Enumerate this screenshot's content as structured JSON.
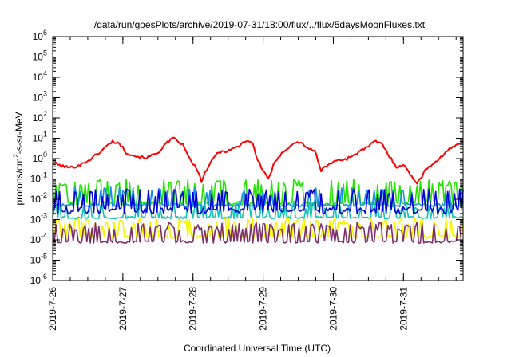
{
  "chart_data": {
    "type": "line",
    "title": "/data/run/goesPlots/archive/2019-07-31/18:00/flux/../flux/5daysMoonFluxes.txt",
    "xlabel": "Coordinated Universal Time (UTC)",
    "ylabel": "protons/cm²-s-sr-MeV",
    "ylabel_parts": {
      "pre": "protons/cm",
      "sup": "2",
      "post": "-s-sr-MeV"
    },
    "yscale": "log",
    "ylim_exp": [
      -6,
      6
    ],
    "y_tick_exponents": [
      -6,
      -5,
      -4,
      -3,
      -2,
      -1,
      0,
      1,
      2,
      3,
      4,
      5,
      6
    ],
    "y_tick_base": "10",
    "xlim_days": [
      0,
      5.85
    ],
    "x_ticks": [
      {
        "label": "2019-7-26",
        "day": 0
      },
      {
        "label": "2019-7-27",
        "day": 1
      },
      {
        "label": "2019-7-28",
        "day": 2
      },
      {
        "label": "2019-7-29",
        "day": 3
      },
      {
        "label": "2019-7-30",
        "day": 4
      },
      {
        "label": "2019-7-31",
        "day": 5
      }
    ],
    "grid": false,
    "legend": "none",
    "series": [
      {
        "color": "#f5f500",
        "style": "spiky",
        "baseline_exp": -3.85,
        "spike_exp": -3.1,
        "prob": 0.45,
        "noise": 0.08,
        "seed": 11,
        "keypoints": []
      },
      {
        "color": "#7b2d6e",
        "style": "spiky",
        "baseline_exp": -4.1,
        "spike_exp": -3.35,
        "prob": 0.45,
        "noise": 0.06,
        "seed": 23,
        "keypoints": []
      },
      {
        "color": "#12c4b4",
        "style": "spiky",
        "baseline_exp": -2.9,
        "spike_exp": -2.3,
        "prob": 0.3,
        "noise": 0.06,
        "seed": 37,
        "keypoints": []
      },
      {
        "color": "#22e400",
        "style": "spiky",
        "baseline_exp": -2.2,
        "spike_exp": -1.2,
        "prob": 0.3,
        "noise": 0.08,
        "seed": 53,
        "keypoints": []
      },
      {
        "color": "#1890e0",
        "style": "spiky",
        "baseline_exp": -2.3,
        "spike_exp": -1.6,
        "prob": 0.22,
        "noise": 0.08,
        "seed": 71,
        "keypoints": []
      },
      {
        "color": "#0000d8",
        "style": "spiky",
        "baseline_exp": -2.55,
        "spike_exp": -1.7,
        "prob": 0.28,
        "noise": 0.18,
        "seed": 89,
        "keypoints": []
      },
      {
        "color": "#ff0000",
        "style": "smooth",
        "baseline_exp": 0,
        "spike_exp": 0,
        "prob": 0,
        "noise": 0.07,
        "seed": 101,
        "keypoints": [
          [
            0.0,
            -0.2
          ],
          [
            0.12,
            -0.35
          ],
          [
            0.25,
            -0.45
          ],
          [
            0.4,
            -0.3
          ],
          [
            0.55,
            0.0
          ],
          [
            0.7,
            0.4
          ],
          [
            0.85,
            0.85
          ],
          [
            0.95,
            0.75
          ],
          [
            1.05,
            0.3
          ],
          [
            1.2,
            0.1
          ],
          [
            1.35,
            0.05
          ],
          [
            1.5,
            0.3
          ],
          [
            1.62,
            0.75
          ],
          [
            1.72,
            1.0
          ],
          [
            1.85,
            0.7
          ],
          [
            1.95,
            0.0
          ],
          [
            2.05,
            -0.5
          ],
          [
            2.12,
            -1.1
          ],
          [
            2.2,
            -0.5
          ],
          [
            2.35,
            0.3
          ],
          [
            2.5,
            0.4
          ],
          [
            2.65,
            0.6
          ],
          [
            2.75,
            0.9
          ],
          [
            2.85,
            0.8
          ],
          [
            2.9,
            0.1
          ],
          [
            3.0,
            -0.6
          ],
          [
            3.08,
            -1.0
          ],
          [
            3.15,
            -0.3
          ],
          [
            3.3,
            0.4
          ],
          [
            3.45,
            0.8
          ],
          [
            3.55,
            0.75
          ],
          [
            3.65,
            0.5
          ],
          [
            3.75,
            0.3
          ],
          [
            3.82,
            -0.6
          ],
          [
            3.92,
            -0.3
          ],
          [
            4.05,
            -0.1
          ],
          [
            4.2,
            0.0
          ],
          [
            4.35,
            0.3
          ],
          [
            4.5,
            0.6
          ],
          [
            4.6,
            0.85
          ],
          [
            4.7,
            0.7
          ],
          [
            4.8,
            0.1
          ],
          [
            4.9,
            -0.4
          ],
          [
            5.0,
            -0.3
          ],
          [
            5.1,
            -0.8
          ],
          [
            5.2,
            -1.2
          ],
          [
            5.35,
            -0.4
          ],
          [
            5.45,
            -0.2
          ],
          [
            5.6,
            0.3
          ],
          [
            5.7,
            0.55
          ],
          [
            5.85,
            0.85
          ]
        ]
      }
    ]
  }
}
